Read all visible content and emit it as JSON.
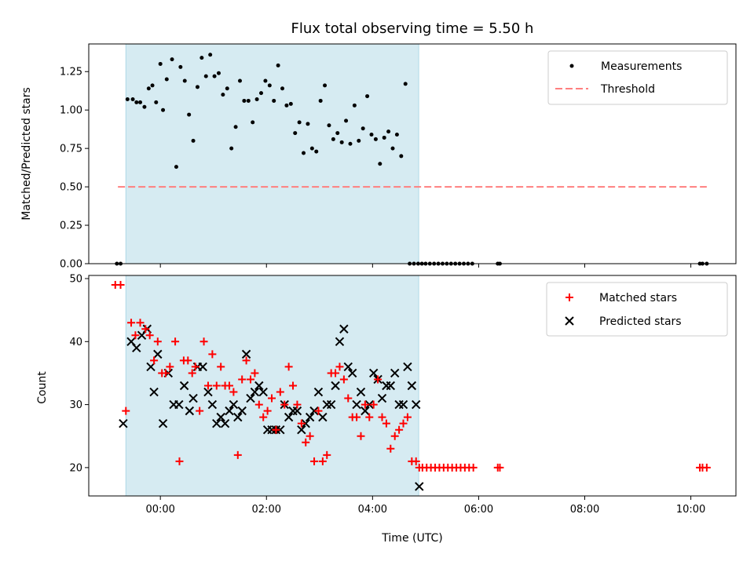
{
  "figure": {
    "title": "Flux total observing time = 5.50 h",
    "xlabel": "Time (UTC)",
    "x_range_hours": [
      -1.35,
      10.85
    ],
    "x_ticks": [
      {
        "hour": 0,
        "label": "00:00"
      },
      {
        "hour": 2,
        "label": "02:00"
      },
      {
        "hour": 4,
        "label": "04:00"
      },
      {
        "hour": 6,
        "label": "06:00"
      },
      {
        "hour": 8,
        "label": "08:00"
      },
      {
        "hour": 10,
        "label": "10:00"
      }
    ],
    "shaded_span_hours": [
      -0.65,
      4.87
    ],
    "shade_color": "#add8e6"
  },
  "chart_data": [
    {
      "type": "scatter",
      "panel": "top",
      "ylabel": "Matched/Predicted stars",
      "ylim": [
        0,
        1.43
      ],
      "y_ticks": [
        "0.00",
        "0.25",
        "0.50",
        "0.75",
        "1.00",
        "1.25"
      ],
      "threshold": {
        "name": "Threshold",
        "y": 0.5,
        "x_range": [
          -0.8,
          10.3
        ],
        "color": "#ff7f7f",
        "style": "dashed"
      },
      "series": [
        {
          "name": "Measurements",
          "color": "#000000",
          "marker": "dot",
          "x": [
            -0.82,
            -0.75,
            -0.62,
            -0.52,
            -0.45,
            -0.38,
            -0.3,
            -0.22,
            -0.15,
            -0.08,
            0.0,
            0.05,
            0.12,
            0.22,
            0.3,
            0.38,
            0.46,
            0.54,
            0.62,
            0.7,
            0.78,
            0.86,
            0.94,
            1.02,
            1.1,
            1.18,
            1.26,
            1.34,
            1.42,
            1.5,
            1.58,
            1.66,
            1.74,
            1.82,
            1.9,
            1.98,
            2.06,
            2.14,
            2.22,
            2.3,
            2.38,
            2.46,
            2.54,
            2.62,
            2.7,
            2.78,
            2.86,
            2.94,
            3.02,
            3.1,
            3.18,
            3.26,
            3.34,
            3.42,
            3.5,
            3.58,
            3.66,
            3.74,
            3.82,
            3.9,
            3.98,
            4.06,
            4.14,
            4.22,
            4.3,
            4.38,
            4.46,
            4.54,
            4.62,
            4.7,
            4.78,
            4.86,
            4.93,
            5.0,
            5.08,
            5.16,
            5.24,
            5.32,
            5.4,
            5.48,
            5.56,
            5.64,
            5.72,
            5.8,
            5.88,
            6.36,
            6.4,
            10.17,
            10.22,
            10.3
          ],
          "y": [
            0.0,
            0.0,
            1.07,
            1.07,
            1.05,
            1.05,
            1.02,
            1.14,
            1.16,
            1.05,
            1.3,
            1.0,
            1.2,
            1.33,
            0.63,
            1.28,
            1.19,
            0.97,
            0.8,
            1.15,
            1.34,
            1.22,
            1.36,
            1.22,
            1.24,
            1.1,
            1.14,
            0.75,
            0.89,
            1.19,
            1.06,
            1.06,
            0.92,
            1.07,
            1.11,
            1.19,
            1.16,
            1.06,
            1.29,
            1.14,
            1.03,
            1.04,
            0.85,
            0.92,
            0.72,
            0.91,
            0.75,
            0.73,
            1.06,
            1.16,
            0.9,
            0.81,
            0.85,
            0.79,
            0.93,
            0.78,
            1.03,
            0.8,
            0.88,
            1.09,
            0.84,
            0.81,
            0.65,
            0.82,
            0.86,
            0.75,
            0.84,
            0.7,
            1.17,
            0.0,
            0.0,
            0.0,
            0.0,
            0.0,
            0.0,
            0.0,
            0.0,
            0.0,
            0.0,
            0.0,
            0.0,
            0.0,
            0.0,
            0.0,
            0.0,
            0.0,
            0.0,
            0.0,
            0.0,
            0.0
          ]
        }
      ],
      "legend": {
        "position": "top-right",
        "entries": [
          "Measurements",
          "Threshold"
        ]
      }
    },
    {
      "type": "scatter",
      "panel": "bottom",
      "ylabel": "Count",
      "ylim": [
        15.5,
        50.5
      ],
      "y_ticks": [
        "20",
        "30",
        "40",
        "50"
      ],
      "series": [
        {
          "name": "Matched stars",
          "color": "#ff0000",
          "marker": "plus",
          "x": [
            -0.85,
            -0.75,
            -0.65,
            -0.55,
            -0.47,
            -0.38,
            -0.28,
            -0.2,
            -0.12,
            -0.05,
            0.03,
            0.1,
            0.18,
            0.28,
            0.36,
            0.44,
            0.52,
            0.6,
            0.66,
            0.74,
            0.82,
            0.9,
            0.98,
            1.06,
            1.14,
            1.22,
            1.3,
            1.38,
            1.46,
            1.54,
            1.62,
            1.7,
            1.78,
            1.86,
            1.94,
            2.02,
            2.1,
            2.18,
            2.26,
            2.34,
            2.42,
            2.5,
            2.58,
            2.66,
            2.74,
            2.82,
            2.9,
            2.98,
            3.06,
            3.14,
            3.22,
            3.3,
            3.38,
            3.46,
            3.54,
            3.62,
            3.7,
            3.78,
            3.86,
            3.94,
            4.02,
            4.1,
            4.18,
            4.26,
            4.34,
            4.42,
            4.5,
            4.58,
            4.66,
            4.74,
            4.82,
            4.88,
            4.94,
            5.02,
            5.1,
            5.18,
            5.26,
            5.34,
            5.42,
            5.5,
            5.58,
            5.66,
            5.74,
            5.82,
            5.9,
            6.36,
            6.4,
            10.17,
            10.22,
            10.3
          ],
          "y": [
            49,
            49,
            29,
            43,
            41,
            43,
            42,
            41,
            37,
            40,
            35,
            35,
            36,
            40,
            21,
            37,
            37,
            35,
            36,
            29,
            40,
            33,
            38,
            33,
            36,
            33,
            33,
            32,
            22,
            34,
            37,
            34,
            35,
            30,
            28,
            29,
            31,
            26,
            32,
            30,
            36,
            33,
            30,
            27,
            24,
            25,
            21,
            29,
            21,
            22,
            35,
            35,
            36,
            34,
            31,
            28,
            28,
            25,
            30,
            28,
            30,
            34,
            28,
            27,
            23,
            25,
            26,
            27,
            28,
            21,
            21,
            20,
            20,
            20,
            20,
            20,
            20,
            20,
            20,
            20,
            20,
            20,
            20,
            20,
            20,
            20,
            20,
            20,
            20,
            20
          ],
          "x_note": ""
        },
        {
          "name": "Predicted stars",
          "color": "#000000",
          "marker": "x",
          "x": [
            -0.7,
            -0.55,
            -0.45,
            -0.35,
            -0.25,
            -0.18,
            -0.12,
            -0.05,
            0.05,
            0.15,
            0.25,
            0.35,
            0.45,
            0.55,
            0.62,
            0.7,
            0.8,
            0.9,
            0.98,
            1.06,
            1.14,
            1.22,
            1.3,
            1.38,
            1.46,
            1.54,
            1.62,
            1.7,
            1.78,
            1.86,
            1.94,
            2.02,
            2.1,
            2.18,
            2.26,
            2.34,
            2.42,
            2.5,
            2.58,
            2.66,
            2.74,
            2.82,
            2.9,
            2.98,
            3.06,
            3.14,
            3.22,
            3.3,
            3.38,
            3.46,
            3.54,
            3.62,
            3.7,
            3.78,
            3.86,
            3.94,
            4.02,
            4.1,
            4.18,
            4.26,
            4.34,
            4.42,
            4.5,
            4.58,
            4.66,
            4.74,
            4.82,
            4.88
          ],
          "y": [
            27,
            40,
            39,
            41,
            42,
            36,
            32,
            38,
            27,
            35,
            30,
            30,
            33,
            29,
            31,
            36,
            36,
            32,
            30,
            27,
            28,
            27,
            29,
            30,
            28,
            29,
            38,
            31,
            32,
            33,
            32,
            26,
            26,
            26,
            26,
            30,
            28,
            29,
            29,
            26,
            27,
            28,
            29,
            32,
            28,
            30,
            30,
            33,
            40,
            42,
            36,
            35,
            30,
            32,
            29,
            30,
            35,
            34,
            31,
            33,
            33,
            35,
            30,
            30,
            36,
            33,
            30,
            17
          ]
        }
      ],
      "legend": {
        "position": "top-right",
        "entries": [
          "Matched stars",
          "Predicted stars"
        ]
      }
    }
  ]
}
